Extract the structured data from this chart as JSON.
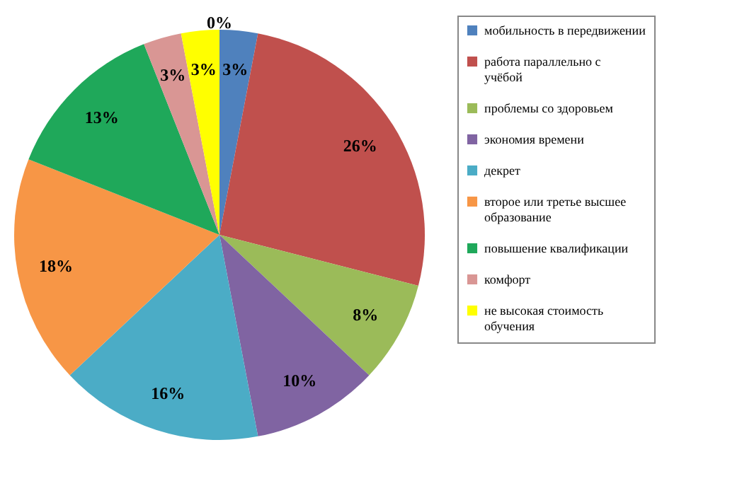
{
  "chart_data": {
    "type": "pie",
    "legend": "right",
    "categories": [
      "мобильность в передвижении",
      "работа параллельно с учёбой",
      "проблемы со здоровьем",
      "экономия времени",
      "декрет",
      "второе или третье высшее образование",
      "повышение квалификации",
      "комфорт",
      "не высокая стоимость обучения",
      null
    ],
    "values": [
      3,
      26,
      8,
      10,
      16,
      18,
      13,
      3,
      3,
      0
    ],
    "value_labels": [
      "3%",
      "26%",
      "8%",
      "10%",
      "16%",
      "18%",
      "13%",
      "3%",
      "3%",
      "0%"
    ],
    "colors": [
      "#4f81bd",
      "#c0504d",
      "#9bbb59",
      "#8064a2",
      "#4bacc6",
      "#f79646",
      "#1fa85a",
      "#d99694",
      "#ffff00",
      "#000000"
    ]
  }
}
